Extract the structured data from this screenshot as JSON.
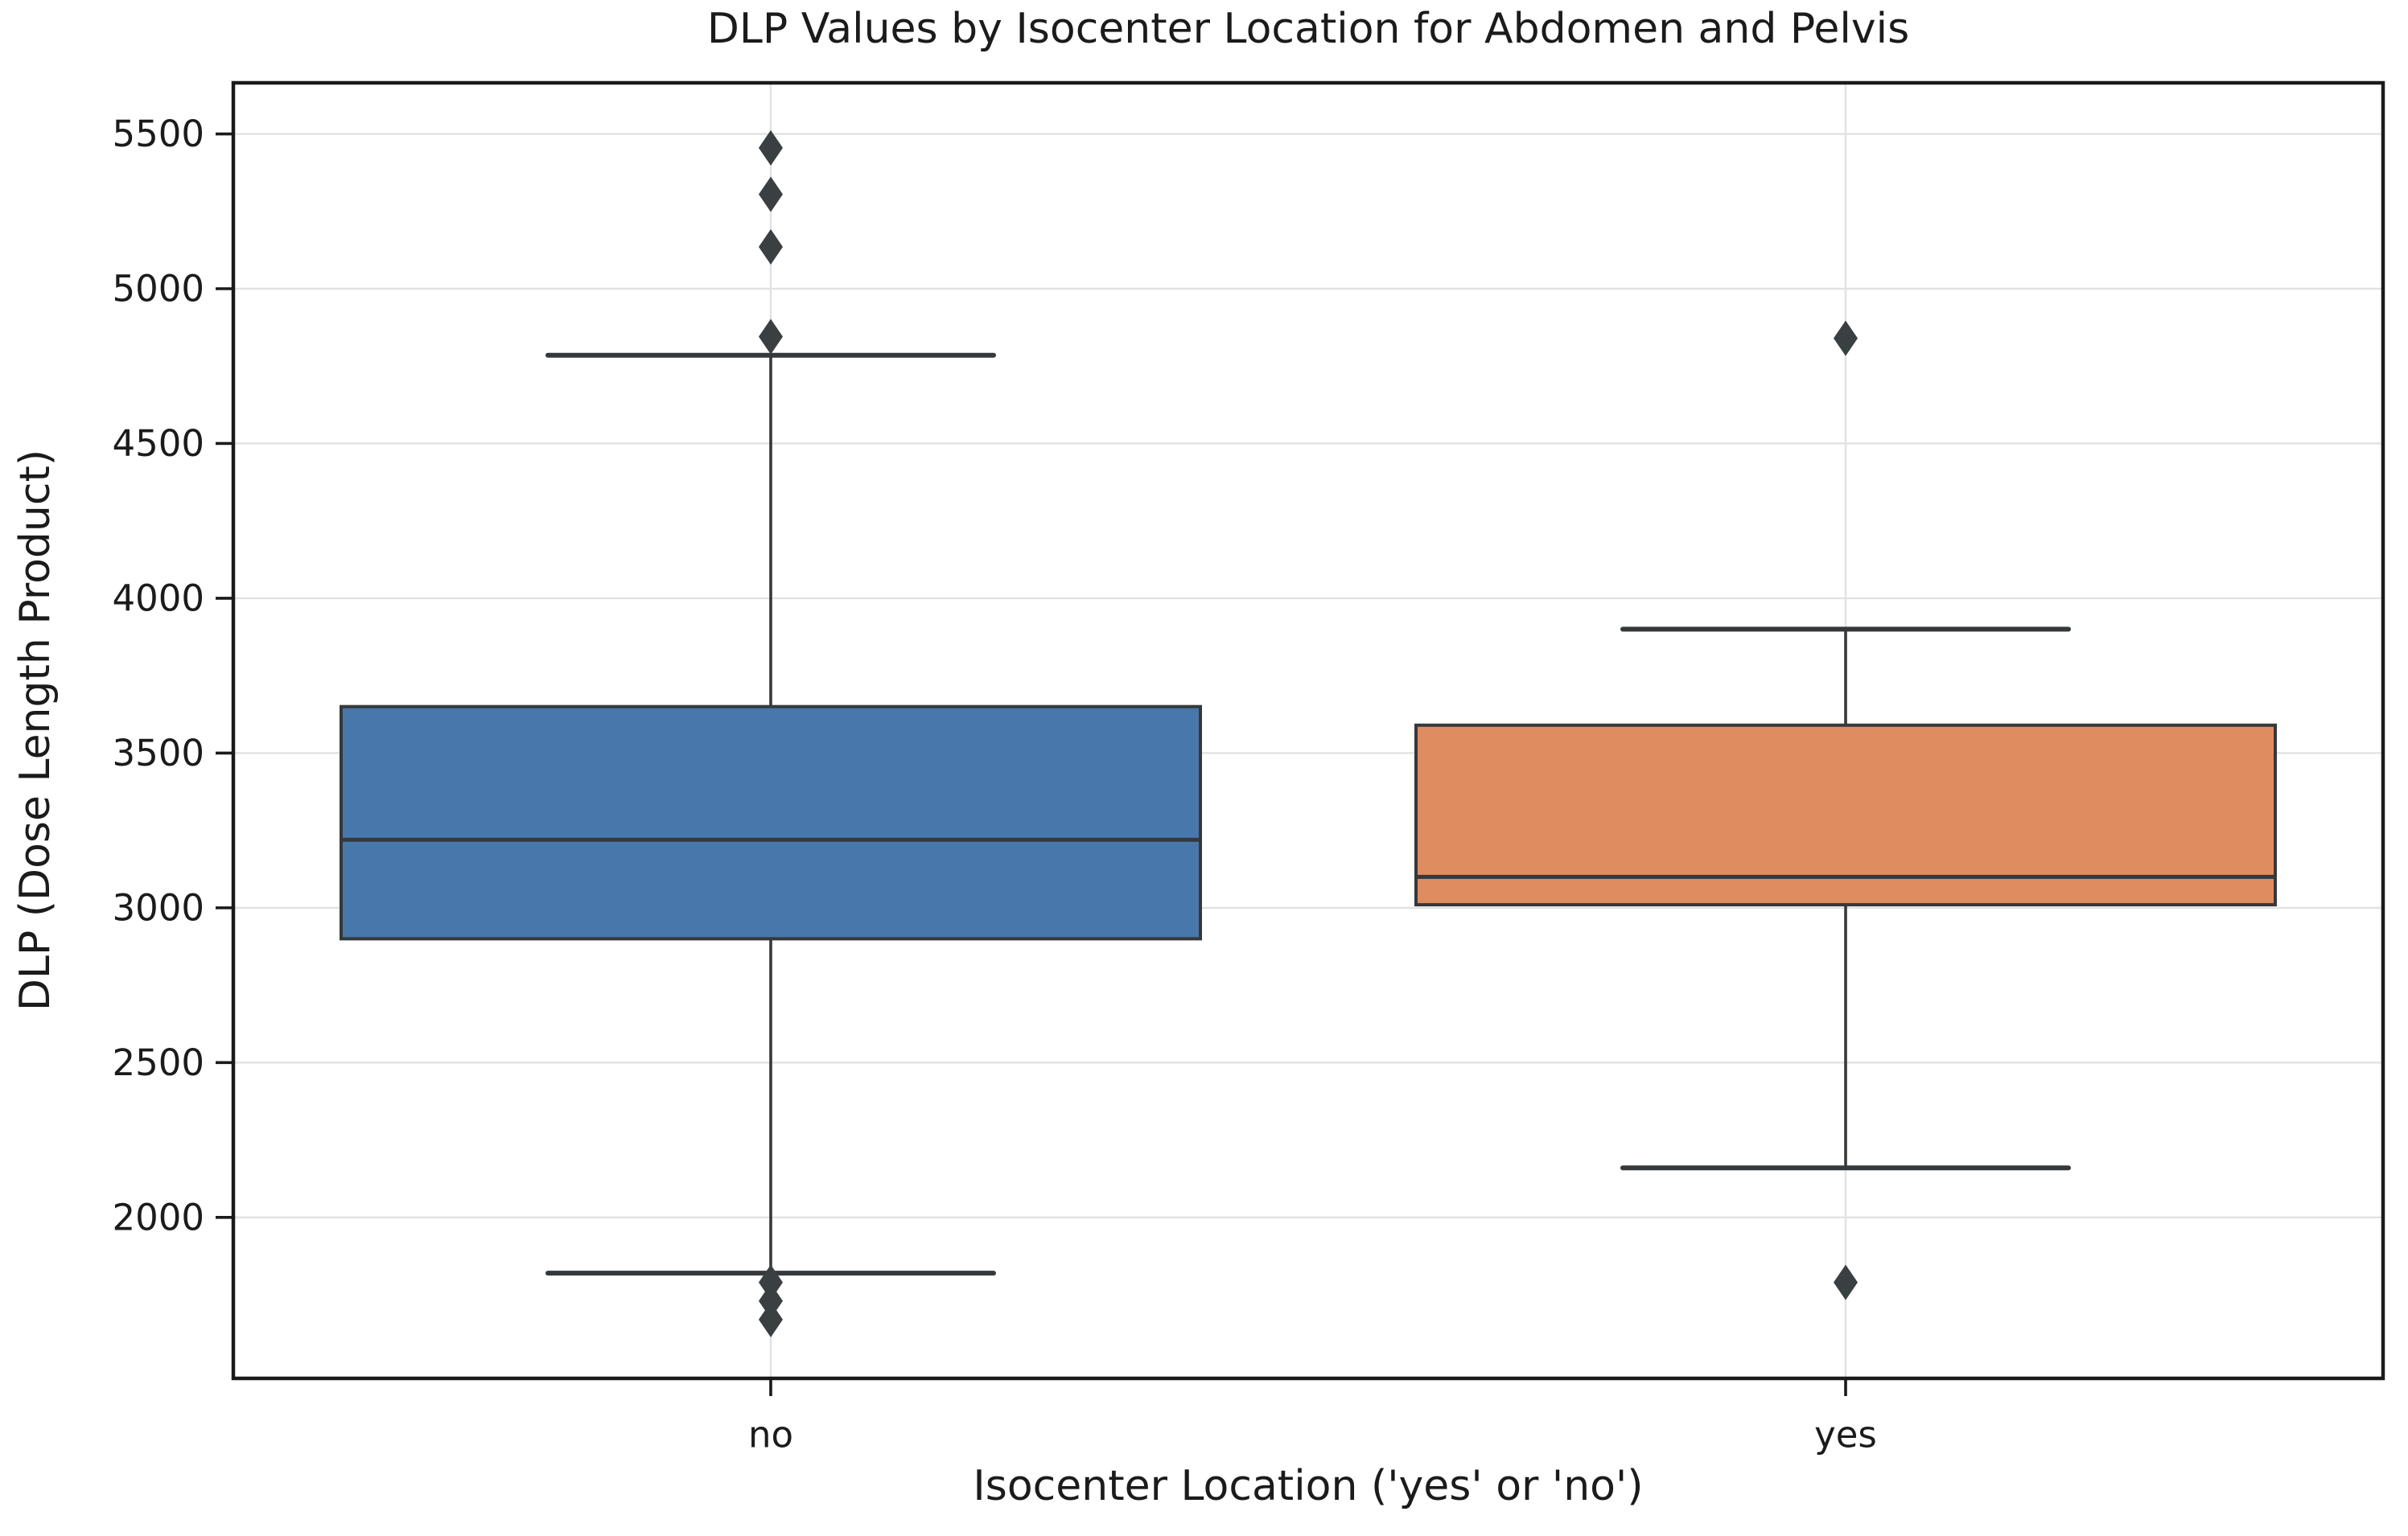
{
  "chart_data": {
    "type": "boxplot",
    "title": "DLP Values by Isocenter Location for Abdomen and Pelvis",
    "xlabel": "Isocenter Location ('yes' or 'no')",
    "ylabel": "DLP (Dose Length Product)",
    "categories": [
      "no",
      "yes"
    ],
    "yticks": [
      2000,
      2500,
      3000,
      3500,
      4000,
      4500,
      5000,
      5500
    ],
    "ylim": [
      1480,
      5665
    ],
    "grid": true,
    "legend": false,
    "series": [
      {
        "category": "no",
        "box_color": "#4878AB",
        "whisker_low": 1820,
        "q1": 2900,
        "median": 3220,
        "q3": 3650,
        "whisker_high": 4785,
        "outliers": [
          5455,
          5305,
          5135,
          4845,
          1790,
          1730,
          1670
        ]
      },
      {
        "category": "yes",
        "box_color": "#E08C61",
        "whisker_low": 2160,
        "q1": 3010,
        "median": 3100,
        "q3": 3590,
        "whisker_high": 3900,
        "outliers": [
          4840,
          1790
        ]
      }
    ],
    "colors": {
      "edge": "#35393B",
      "outlier": "#3A3F42",
      "grid": "#e2e2e2",
      "spine": "#1a1a1a",
      "text": "#1b1b1b",
      "background": "#ffffff"
    }
  }
}
